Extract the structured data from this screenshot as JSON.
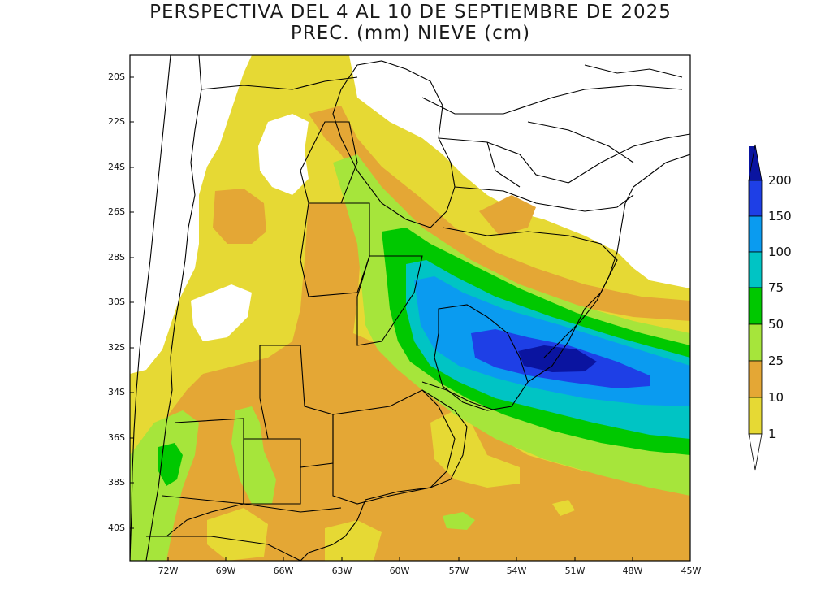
{
  "title": {
    "line1": "PERSPECTIVA DEL 4 AL 10 DE SEPTIEMBRE DE 2025",
    "line2": "PREC. (mm) NIEVE (cm)"
  },
  "map": {
    "lat_labels": [
      "20S",
      "22S",
      "24S",
      "26S",
      "28S",
      "30S",
      "32S",
      "34S",
      "36S",
      "38S",
      "40S"
    ],
    "lon_labels": [
      "72W",
      "69W",
      "66W",
      "63W",
      "60W",
      "57W",
      "54W",
      "51W",
      "48W",
      "45W"
    ],
    "extent": {
      "lon_min": -73.3,
      "lon_max": -45,
      "lat_min": -41.5,
      "lat_max": -19
    }
  },
  "legend": {
    "levels": [
      "1",
      "10",
      "25",
      "50",
      "75",
      "100",
      "150",
      "200"
    ],
    "colors": {
      "lt1": "#ffffff",
      "1-10": "#e6d934",
      "10-25": "#e4a735",
      "25-50": "#a6e53b",
      "50-75": "#00c800",
      "75-100": "#00c4c4",
      "100-150": "#0a9bf0",
      "150-200": "#1e3fe6",
      "gt200": "#0a14a0"
    }
  }
}
